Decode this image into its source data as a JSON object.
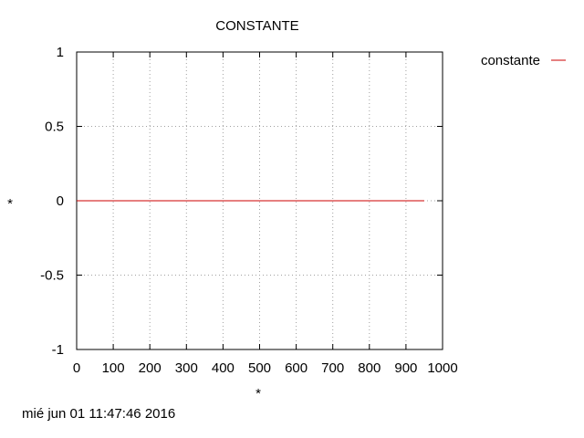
{
  "chart_data": {
    "type": "line",
    "title": "CONSTANTE",
    "xlabel": "*",
    "ylabel": "*",
    "xlim": [
      0,
      1000
    ],
    "ylim": [
      -1,
      1
    ],
    "xticks": [
      0,
      100,
      200,
      300,
      400,
      500,
      600,
      700,
      800,
      900,
      1000
    ],
    "yticks": [
      1,
      0.5,
      0,
      -0.5,
      -1
    ],
    "ytick_labels": [
      "1",
      "0.5",
      "0",
      "-0.5",
      "-1"
    ],
    "grid": true,
    "legend_position": "outside-top-right",
    "series": [
      {
        "name": "constante",
        "color": "#cc0000",
        "x": [
          0,
          950
        ],
        "y": [
          0,
          0
        ]
      }
    ],
    "timestamp": "mié jun 01 11:47:46 2016"
  }
}
